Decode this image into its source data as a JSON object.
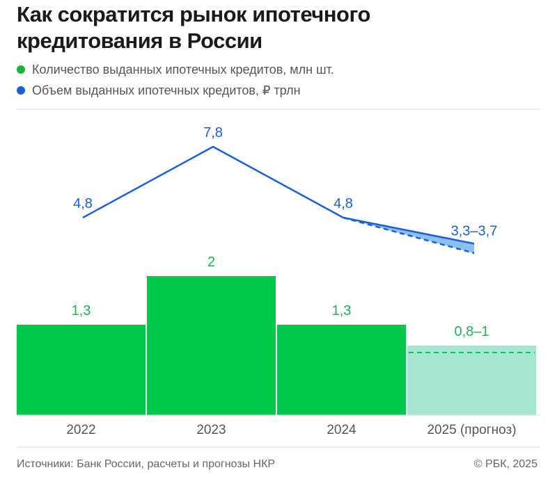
{
  "title": "Как сократится рынок ипотечного кредитования в России",
  "legend": [
    {
      "label": "Количество выданных ипотечных кредитов, млн шт.",
      "color": "#1db13a"
    },
    {
      "label": "Объем выданных ипотечных кредитов, ₽ трлн",
      "color": "#1a5fd8"
    }
  ],
  "source": "Источники: Банк России, расчеты и прогнозы НКР",
  "credit": "© РБК, 2025",
  "colors": {
    "bar": "#00c84a",
    "bar_forecast": "#a6e6d0",
    "bar_label": "#1fb05a",
    "line": "#1a5fd8",
    "line_fill": "#8cc0ef",
    "divider": "#dddddd",
    "tick": "#555555"
  },
  "chart_data": [
    {
      "type": "bar",
      "categories": [
        "2022",
        "2023",
        "2024",
        "2025 (прогноз)"
      ],
      "series": [
        {
          "name": "Количество выданных ипотечных кредитов, млн шт.",
          "values": [
            1.3,
            2.0,
            1.3,
            0.9
          ],
          "range_last": [
            0.8,
            1.0
          ]
        }
      ],
      "labels": [
        "1,3",
        "2",
        "1,3",
        "0,8–1"
      ],
      "forecast_index": 3,
      "ylim": [
        0,
        2.15
      ]
    },
    {
      "type": "line",
      "categories": [
        "2022",
        "2023",
        "2024",
        "2025 (прогноз)"
      ],
      "series": [
        {
          "name": "Объем выданных ипотечных кредитов, ₽ трлн",
          "values": [
            4.8,
            7.8,
            4.8,
            3.5
          ],
          "range_last": [
            3.3,
            3.7
          ]
        }
      ],
      "labels": [
        "4,8",
        "7,8",
        "4,8",
        "3,3–3,7"
      ],
      "forecast_index": 3
    }
  ]
}
